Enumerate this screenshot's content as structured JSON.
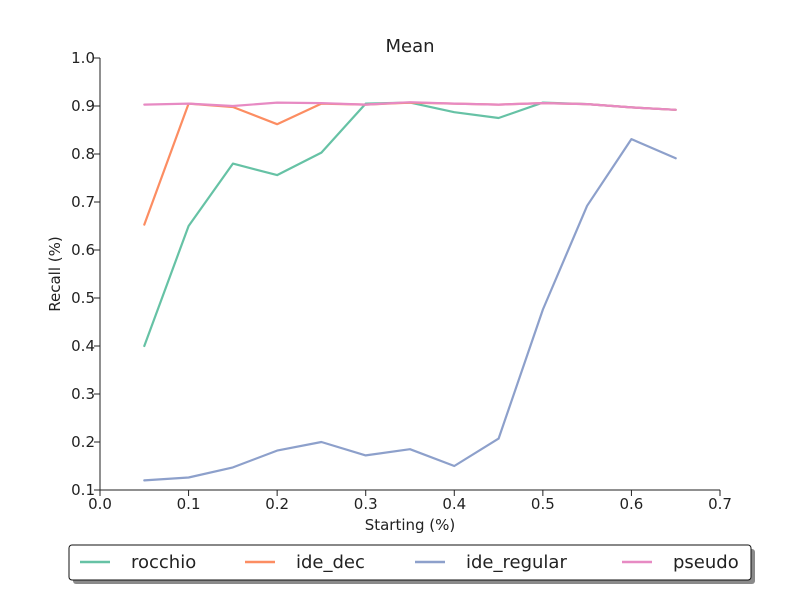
{
  "chart_data": {
    "type": "line",
    "title": "Mean",
    "xlabel": "Starting (%)",
    "ylabel": "Recall (%)",
    "xlim": [
      0.0,
      0.7
    ],
    "ylim": [
      0.1,
      1.0
    ],
    "xticks": [
      "0.0",
      "0.1",
      "0.2",
      "0.3",
      "0.4",
      "0.5",
      "0.6",
      "0.7"
    ],
    "yticks": [
      "0.1",
      "0.2",
      "0.3",
      "0.4",
      "0.5",
      "0.6",
      "0.7",
      "0.8",
      "0.9",
      "1.0"
    ],
    "grid": false,
    "legend_position": "bottom, outside plot",
    "x": [
      0.05,
      0.1,
      0.15,
      0.2,
      0.25,
      0.3,
      0.35,
      0.4,
      0.45,
      0.5,
      0.55,
      0.6,
      0.65
    ],
    "series": [
      {
        "name": "rocchio",
        "color": "#66c2a5",
        "values": [
          0.4,
          0.65,
          0.78,
          0.756,
          0.803,
          0.905,
          0.907,
          0.887,
          0.875,
          0.907,
          0.904,
          0.897,
          0.892
        ]
      },
      {
        "name": "ide_dec",
        "color": "#fc8d62",
        "values": [
          0.653,
          0.905,
          0.898,
          0.862,
          0.905,
          0.903,
          0.907,
          0.905,
          0.903,
          0.906,
          0.904,
          0.897,
          0.892
        ]
      },
      {
        "name": "ide_regular",
        "color": "#8da0cb",
        "values": [
          0.12,
          0.126,
          0.147,
          0.182,
          0.2,
          0.172,
          0.185,
          0.15,
          0.207,
          0.476,
          0.692,
          0.831,
          0.791
        ]
      },
      {
        "name": "pseudo",
        "color": "#e78ac3",
        "values": [
          0.903,
          0.905,
          0.9,
          0.907,
          0.906,
          0.903,
          0.908,
          0.905,
          0.903,
          0.906,
          0.904,
          0.897,
          0.892
        ]
      }
    ]
  }
}
